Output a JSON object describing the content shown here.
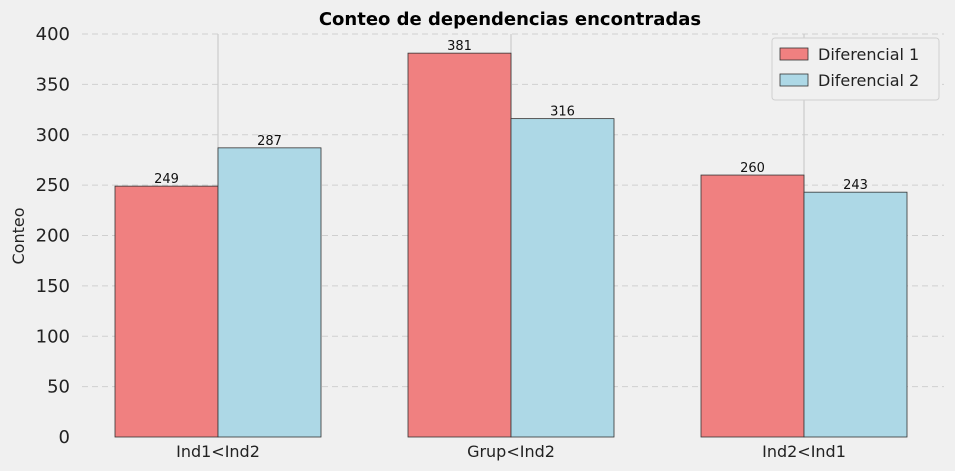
{
  "chart_data": {
    "type": "bar",
    "title": "Conteo de dependencias encontradas",
    "xlabel": "",
    "ylabel": "Conteo",
    "categories": [
      "Ind1<Ind2",
      "Grup<Ind2",
      "Ind2<Ind1"
    ],
    "series": [
      {
        "name": "Diferencial 1",
        "values": [
          249,
          381,
          260
        ],
        "color": "#f08080"
      },
      {
        "name": "Diferencial 2",
        "values": [
          287,
          316,
          243
        ],
        "color": "#add8e6"
      }
    ],
    "ylim": [
      0,
      400
    ],
    "yticks": [
      "0",
      "50",
      "100",
      "150",
      "200",
      "250",
      "300",
      "350",
      "400"
    ],
    "grid": true,
    "legend_position": "top-right",
    "show_data_labels": true
  }
}
